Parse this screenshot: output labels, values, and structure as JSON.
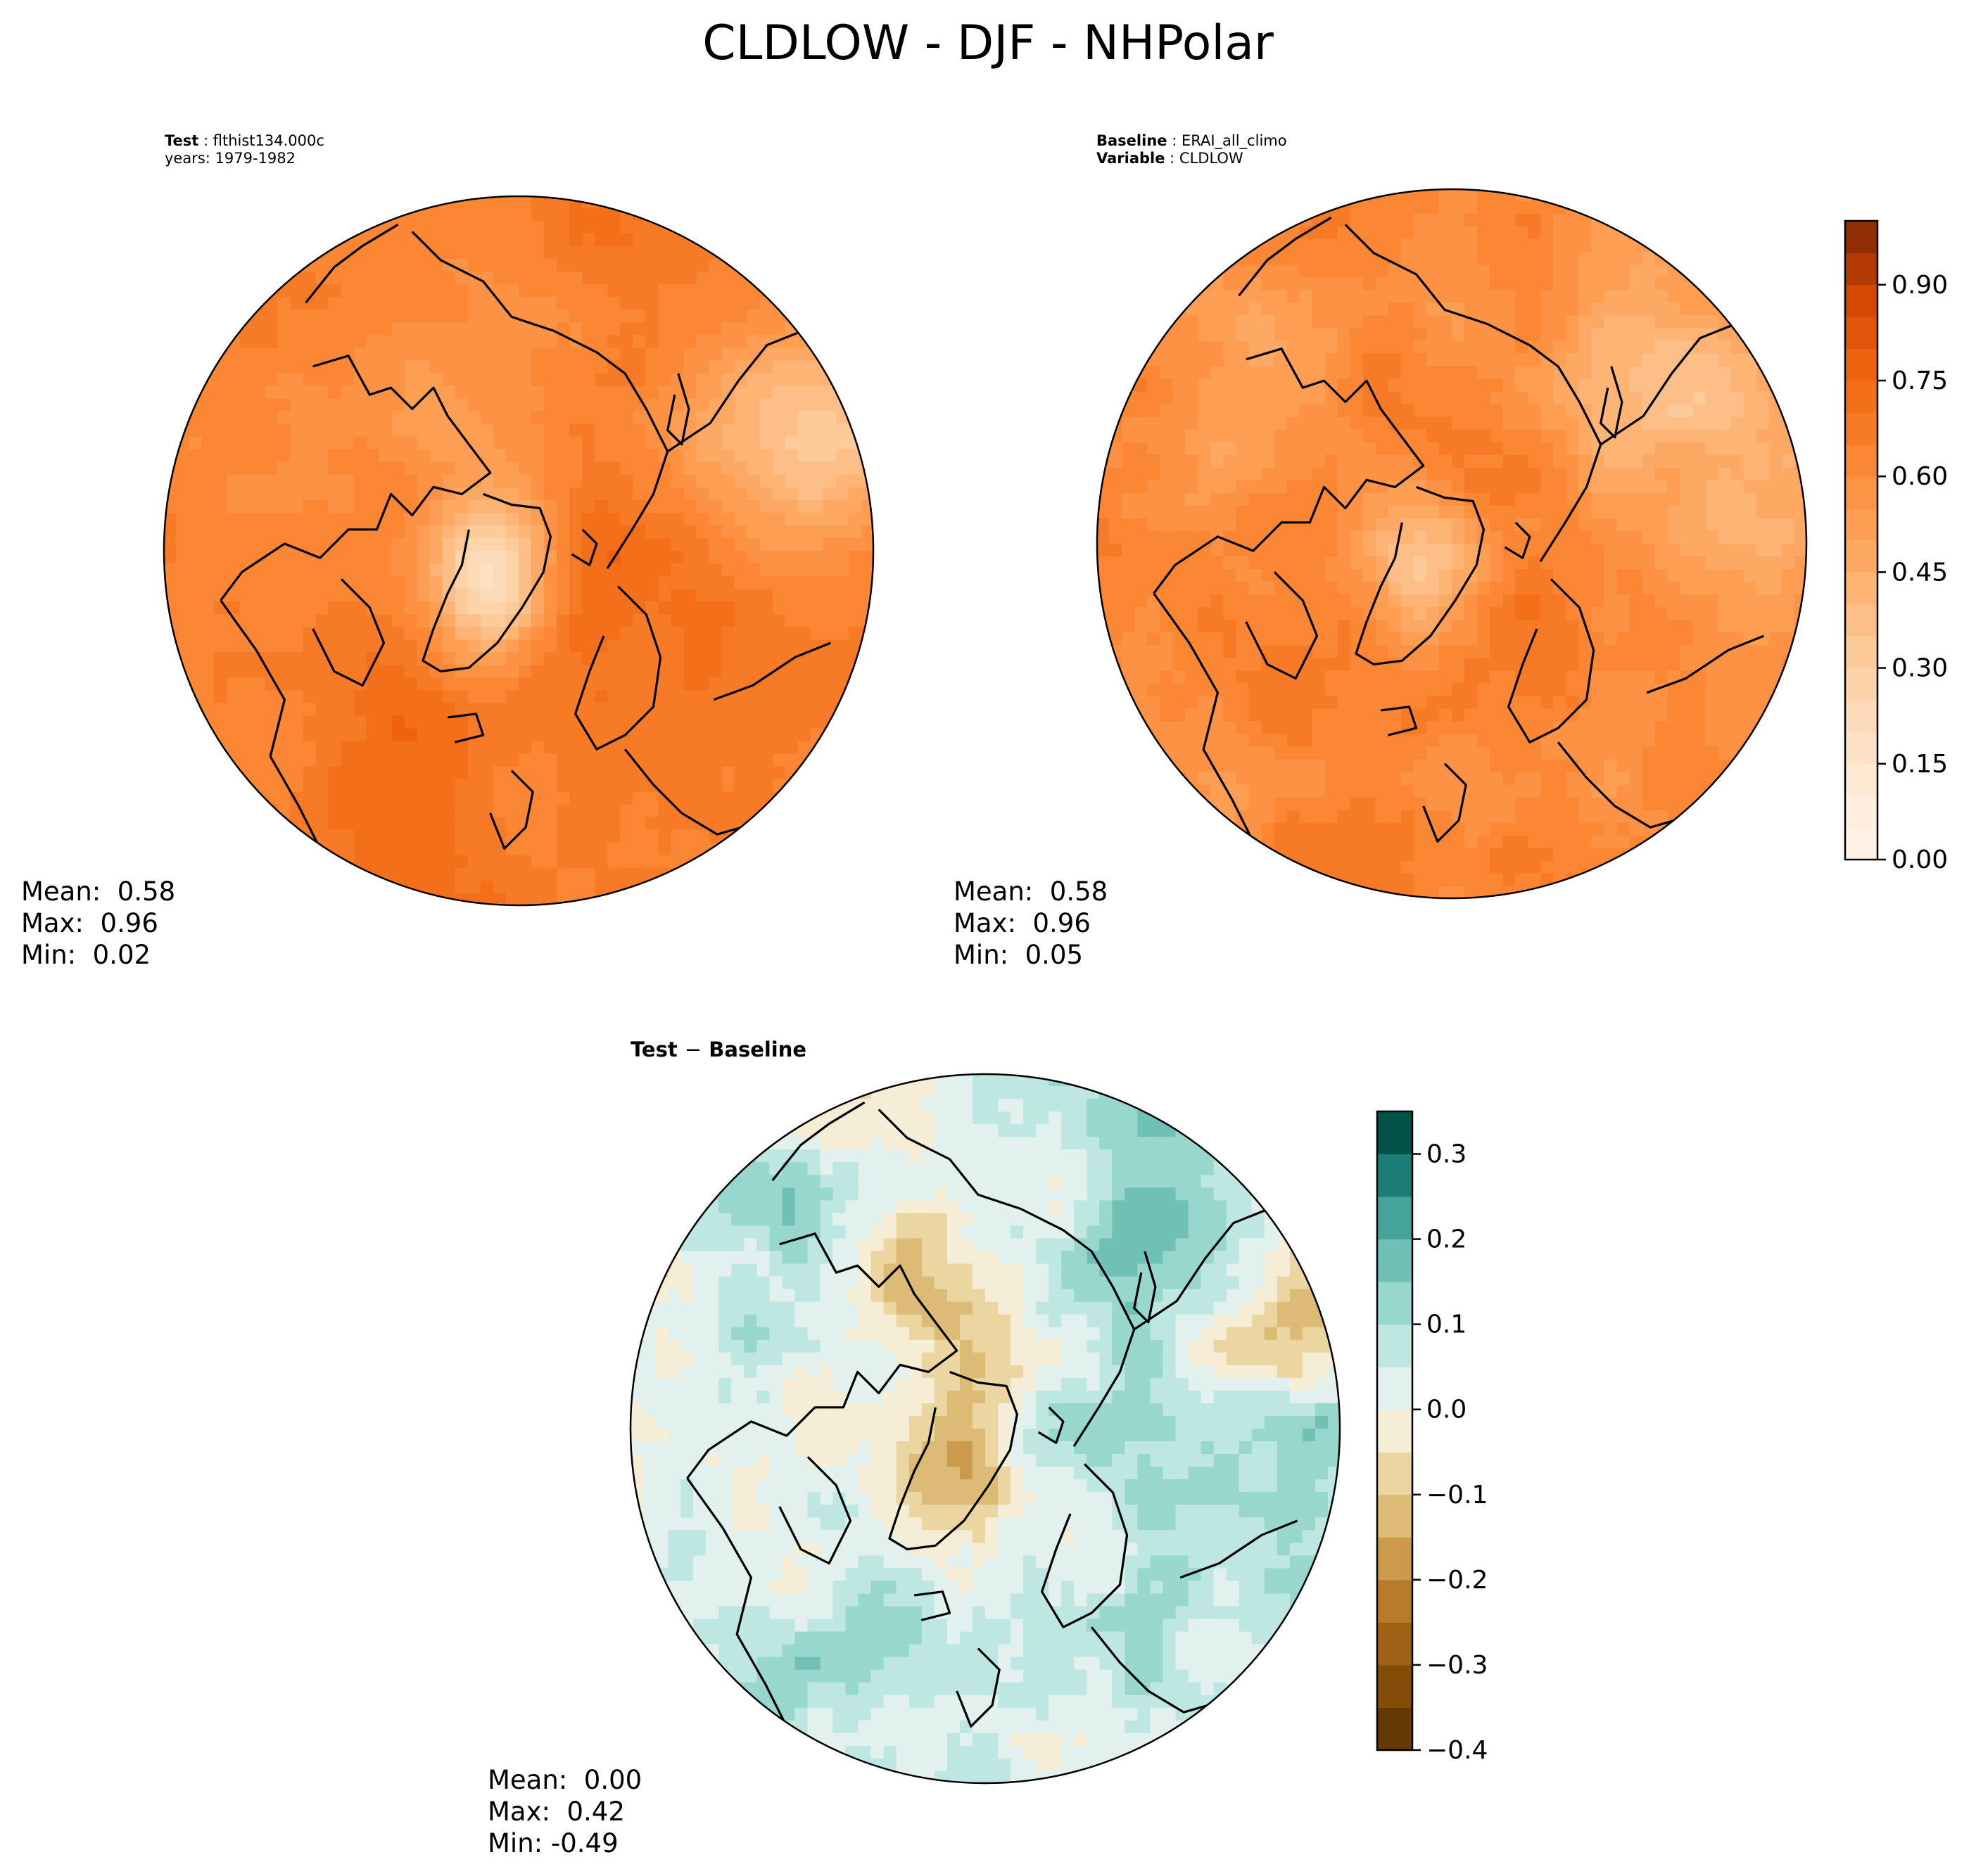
{
  "title": "CLDLOW - DJF - NHPolar",
  "panels": {
    "test": {
      "label_key": "Test",
      "label_value": "flthist134.000c",
      "years": "years: 1979-1982",
      "stats": {
        "mean": "Mean:  0.58",
        "max": "Max:  0.96",
        "min": "Min:  0.02"
      }
    },
    "baseline": {
      "label_key": "Baseline",
      "label_value": "ERAI_all_climo",
      "variable_key": "Variable",
      "variable_value": "CLDLOW",
      "stats": {
        "mean": "Mean:  0.58",
        "max": "Max:  0.96",
        "min": "Min:  0.05"
      }
    },
    "diff": {
      "title_a": "Test",
      "title_sep": "−",
      "title_b": "Baseline",
      "stats": {
        "mean": "Mean:  0.00",
        "max": "Max:  0.42",
        "min": "Min: -0.49"
      }
    }
  },
  "colorbars": {
    "main": {
      "colormap": "Oranges",
      "range": [
        0.0,
        1.0
      ],
      "ticks": [
        "0.00",
        "0.15",
        "0.30",
        "0.45",
        "0.60",
        "0.75",
        "0.90"
      ],
      "tick_values": [
        0.0,
        0.15,
        0.3,
        0.45,
        0.6,
        0.75,
        0.9
      ],
      "levels": 20
    },
    "diff": {
      "colormap": "BrBG",
      "range": [
        -0.4,
        0.35
      ],
      "ticks": [
        "−0.4",
        "−0.3",
        "−0.2",
        "−0.1",
        "0.0",
        "0.1",
        "0.2",
        "0.3"
      ],
      "tick_values": [
        -0.4,
        -0.3,
        -0.2,
        -0.1,
        0.0,
        0.1,
        0.2,
        0.3
      ],
      "levels": 15
    }
  },
  "map_data": {
    "projection": "north polar stereographic",
    "region": "NHPolar",
    "season": "DJF",
    "variable": "CLDLOW"
  }
}
